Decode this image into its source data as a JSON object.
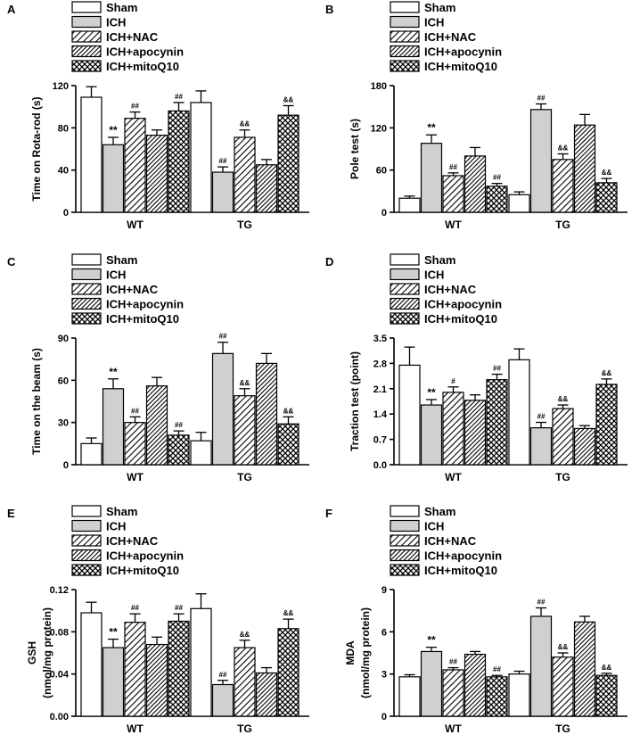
{
  "legend": [
    "Sham",
    "ICH",
    "ICH+NAC",
    "ICH+apocynin",
    "ICH+mitoQ10"
  ],
  "groups": [
    "WT",
    "TG"
  ],
  "colors": {
    "ich_fill": "#d0d0d0",
    "sham_fill": "#ffffff",
    "stroke": "#000000"
  },
  "chart_data": [
    {
      "panel": "A",
      "type": "bar",
      "ylabel": "Time on Rota-rod (s)",
      "ylim": [
        0,
        120
      ],
      "yticks": [
        "0",
        "40",
        "80",
        "120"
      ],
      "ytick_values": [
        0,
        40,
        80,
        120
      ],
      "categories": [
        "WT",
        "TG"
      ],
      "series": [
        {
          "name": "Sham",
          "values": [
            109,
            104
          ],
          "errors": [
            10,
            11
          ],
          "annot": [
            "",
            ""
          ]
        },
        {
          "name": "ICH",
          "values": [
            64,
            38
          ],
          "errors": [
            7,
            5
          ],
          "annot": [
            "**",
            "##"
          ]
        },
        {
          "name": "ICH+NAC",
          "values": [
            89,
            71
          ],
          "errors": [
            6,
            7
          ],
          "annot": [
            "##",
            "&&"
          ]
        },
        {
          "name": "ICH+apocynin",
          "values": [
            73,
            45
          ],
          "errors": [
            5,
            5
          ],
          "annot": [
            "",
            ""
          ]
        },
        {
          "name": "ICH+mitoQ10",
          "values": [
            96,
            92
          ],
          "errors": [
            8,
            9
          ],
          "annot": [
            "##",
            "&&"
          ]
        }
      ]
    },
    {
      "panel": "B",
      "type": "bar",
      "ylabel": "Pole test (s)",
      "ylim": [
        0,
        180
      ],
      "yticks": [
        "0",
        "60",
        "120",
        "180"
      ],
      "ytick_values": [
        0,
        60,
        120,
        180
      ],
      "categories": [
        "WT",
        "TG"
      ],
      "series": [
        {
          "name": "Sham",
          "values": [
            20,
            25
          ],
          "errors": [
            3,
            4
          ],
          "annot": [
            "",
            ""
          ]
        },
        {
          "name": "ICH",
          "values": [
            98,
            146
          ],
          "errors": [
            12,
            8
          ],
          "annot": [
            "**",
            "##"
          ]
        },
        {
          "name": "ICH+NAC",
          "values": [
            52,
            75
          ],
          "errors": [
            4,
            8
          ],
          "annot": [
            "##",
            "&&"
          ]
        },
        {
          "name": "ICH+apocynin",
          "values": [
            80,
            124
          ],
          "errors": [
            12,
            15
          ],
          "annot": [
            "",
            ""
          ]
        },
        {
          "name": "ICH+mitoQ10",
          "values": [
            37,
            42
          ],
          "errors": [
            4,
            6
          ],
          "annot": [
            "##",
            "&&"
          ]
        }
      ]
    },
    {
      "panel": "C",
      "type": "bar",
      "ylabel": "Time on the beam (s)",
      "ylim": [
        0,
        90
      ],
      "yticks": [
        "0",
        "30",
        "60",
        "90"
      ],
      "ytick_values": [
        0,
        30,
        60,
        90
      ],
      "categories": [
        "WT",
        "TG"
      ],
      "series": [
        {
          "name": "Sham",
          "values": [
            15,
            17
          ],
          "errors": [
            4,
            6
          ],
          "annot": [
            "",
            ""
          ]
        },
        {
          "name": "ICH",
          "values": [
            54,
            79
          ],
          "errors": [
            7,
            8
          ],
          "annot": [
            "**",
            "##"
          ]
        },
        {
          "name": "ICH+NAC",
          "values": [
            30,
            49
          ],
          "errors": [
            4,
            5
          ],
          "annot": [
            "##",
            "&&"
          ]
        },
        {
          "name": "ICH+apocynin",
          "values": [
            56,
            72
          ],
          "errors": [
            6,
            7
          ],
          "annot": [
            "",
            ""
          ]
        },
        {
          "name": "ICH+mitoQ10",
          "values": [
            21,
            29
          ],
          "errors": [
            3,
            5
          ],
          "annot": [
            "##",
            "&&"
          ]
        }
      ]
    },
    {
      "panel": "D",
      "type": "bar",
      "ylabel": "Traction test (point)",
      "ylim": [
        0,
        3.5
      ],
      "yticks": [
        "0.0",
        "0.7",
        "1.4",
        "2.1",
        "2.8",
        "3.5"
      ],
      "ytick_values": [
        0,
        0.7,
        1.4,
        2.1,
        2.8,
        3.5
      ],
      "categories": [
        "WT",
        "TG"
      ],
      "series": [
        {
          "name": "Sham",
          "values": [
            2.75,
            2.9
          ],
          "errors": [
            0.5,
            0.3
          ],
          "annot": [
            "",
            ""
          ]
        },
        {
          "name": "ICH",
          "values": [
            1.65,
            1.02
          ],
          "errors": [
            0.15,
            0.15
          ],
          "annot": [
            "**",
            "##"
          ]
        },
        {
          "name": "ICH+NAC",
          "values": [
            2.0,
            1.55
          ],
          "errors": [
            0.15,
            0.1
          ],
          "annot": [
            "#",
            "&&"
          ]
        },
        {
          "name": "ICH+apocynin",
          "values": [
            1.78,
            1.0
          ],
          "errors": [
            0.15,
            0.08
          ],
          "annot": [
            "",
            ""
          ]
        },
        {
          "name": "ICH+mitoQ10",
          "values": [
            2.35,
            2.22
          ],
          "errors": [
            0.15,
            0.15
          ],
          "annot": [
            "##",
            "&&"
          ]
        }
      ]
    },
    {
      "panel": "E",
      "type": "bar",
      "ylabel": "GSH",
      "ylabel2": "(nmol/mg protein)",
      "ylim": [
        0,
        0.12
      ],
      "yticks": [
        "0.00",
        "0.04",
        "0.08",
        "0.12"
      ],
      "ytick_values": [
        0,
        0.04,
        0.08,
        0.12
      ],
      "categories": [
        "WT",
        "TG"
      ],
      "series": [
        {
          "name": "Sham",
          "values": [
            0.098,
            0.102
          ],
          "errors": [
            0.01,
            0.014
          ],
          "annot": [
            "",
            ""
          ]
        },
        {
          "name": "ICH",
          "values": [
            0.065,
            0.03
          ],
          "errors": [
            0.008,
            0.004
          ],
          "annot": [
            "**",
            "##"
          ]
        },
        {
          "name": "ICH+NAC",
          "values": [
            0.089,
            0.065
          ],
          "errors": [
            0.008,
            0.007
          ],
          "annot": [
            "##",
            "&&"
          ]
        },
        {
          "name": "ICH+apocynin",
          "values": [
            0.068,
            0.041
          ],
          "errors": [
            0.007,
            0.005
          ],
          "annot": [
            "",
            ""
          ]
        },
        {
          "name": "ICH+mitoQ10",
          "values": [
            0.09,
            0.083
          ],
          "errors": [
            0.007,
            0.009
          ],
          "annot": [
            "##",
            "&&"
          ]
        }
      ]
    },
    {
      "panel": "F",
      "type": "bar",
      "ylabel": "MDA",
      "ylabel2": "(nmol/mg protein)",
      "ylim": [
        0,
        9
      ],
      "yticks": [
        "0",
        "3",
        "6",
        "9"
      ],
      "ytick_values": [
        0,
        3,
        6,
        9
      ],
      "categories": [
        "WT",
        "TG"
      ],
      "series": [
        {
          "name": "Sham",
          "values": [
            2.8,
            3.0
          ],
          "errors": [
            0.15,
            0.2
          ],
          "annot": [
            "",
            ""
          ]
        },
        {
          "name": "ICH",
          "values": [
            4.6,
            7.1
          ],
          "errors": [
            0.3,
            0.6
          ],
          "annot": [
            "**",
            "##"
          ]
        },
        {
          "name": "ICH+NAC",
          "values": [
            3.3,
            4.2
          ],
          "errors": [
            0.15,
            0.3
          ],
          "annot": [
            "##",
            "&&"
          ]
        },
        {
          "name": "ICH+apocynin",
          "values": [
            4.4,
            6.7
          ],
          "errors": [
            0.2,
            0.4
          ],
          "annot": [
            "",
            ""
          ]
        },
        {
          "name": "ICH+mitoQ10",
          "values": [
            2.8,
            2.9
          ],
          "errors": [
            0.1,
            0.15
          ],
          "annot": [
            "##",
            "&&"
          ]
        }
      ]
    }
  ]
}
